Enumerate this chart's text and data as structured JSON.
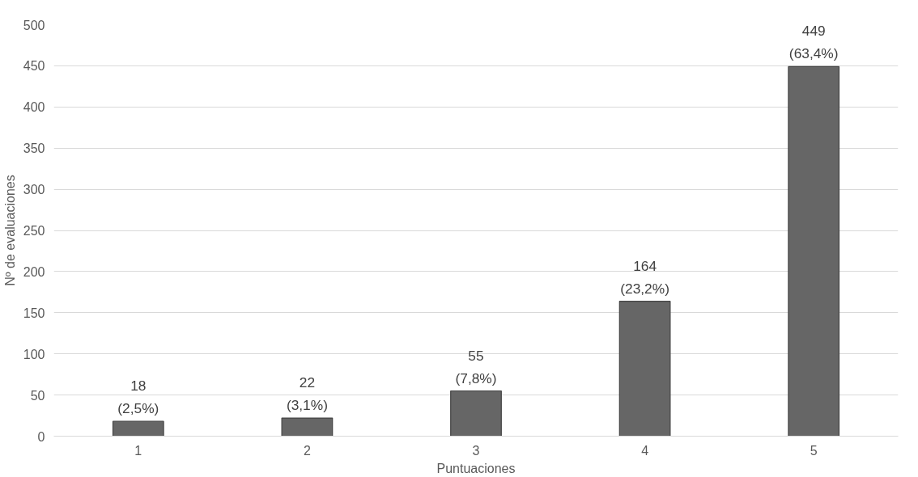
{
  "chart_data": {
    "type": "bar",
    "xlabel": "Puntuaciones",
    "ylabel": "Nº de evaluaciones",
    "categories": [
      "1",
      "2",
      "3",
      "4",
      "5"
    ],
    "values": [
      18,
      22,
      55,
      164,
      449
    ],
    "value_labels": [
      "18\n(2,5%)",
      "22\n(3,1%)",
      "55\n(7,8%)",
      "164\n(23,2%)",
      "449\n(63,4%)"
    ],
    "color": "#666666",
    "ylim": [
      0,
      500
    ],
    "yticks": [
      0,
      50,
      100,
      150,
      200,
      250,
      300,
      350,
      400,
      450,
      500
    ],
    "grid": "y"
  }
}
